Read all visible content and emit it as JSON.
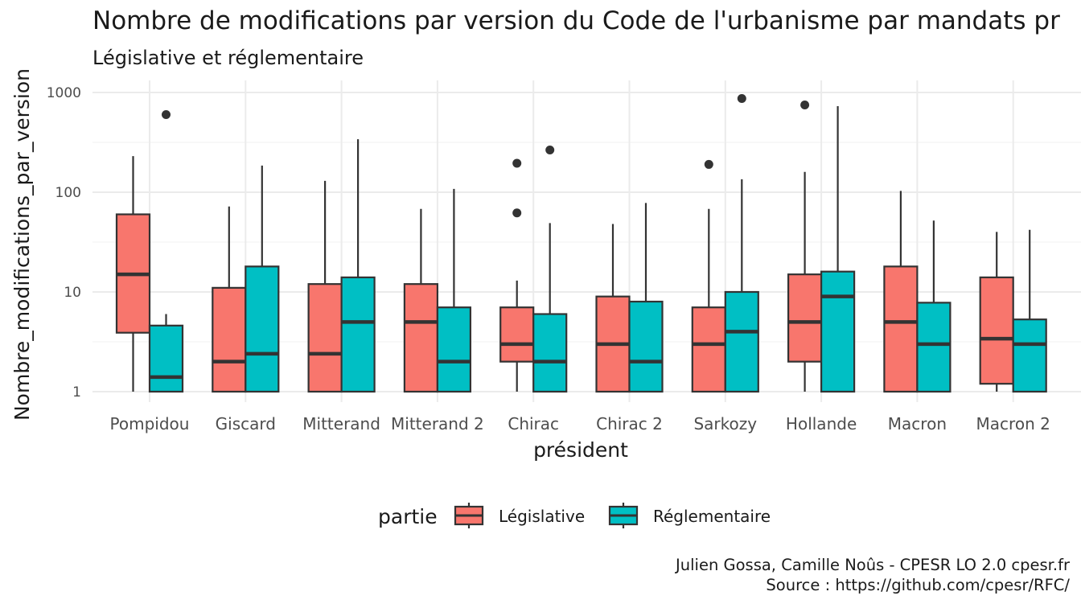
{
  "chart_data": {
    "type": "boxplot",
    "title": "Nombre de modifications par version du Code de l'urbanisme par mandats pr",
    "subtitle": "Législative et réglementaire",
    "xlabel": "président",
    "ylabel": "Nombre_modifications_par_version",
    "y_scale": "log10",
    "ylim": [
      0.9,
      1200
    ],
    "y_ticks": [
      {
        "value": 1,
        "label": "1"
      },
      {
        "value": 10,
        "label": "10"
      },
      {
        "value": 100,
        "label": "100"
      },
      {
        "value": 1000,
        "label": "1000"
      }
    ],
    "categories": [
      "Pompidou",
      "Giscard",
      "Mitterand",
      "Mitterand 2",
      "Chirac",
      "Chirac 2",
      "Sarkozy",
      "Hollande",
      "Macron",
      "Macron 2"
    ],
    "legend": {
      "title": "partie",
      "position": "bottom"
    },
    "grid": true,
    "series": [
      {
        "name": "Législative",
        "color": "#F8766D",
        "boxes": [
          {
            "min": 1,
            "q1": 3.9,
            "median": 15,
            "q3": 60,
            "max": 230,
            "outliers": []
          },
          {
            "min": 1,
            "q1": 1,
            "median": 2,
            "q3": 11,
            "max": 72,
            "outliers": []
          },
          {
            "min": 1,
            "q1": 1,
            "median": 2.4,
            "q3": 12,
            "max": 130,
            "outliers": []
          },
          {
            "min": 1,
            "q1": 1,
            "median": 5,
            "q3": 12,
            "max": 68,
            "outliers": []
          },
          {
            "min": 1,
            "q1": 2,
            "median": 3,
            "q3": 7,
            "max": 13,
            "outliers": [
              62,
              195
            ]
          },
          {
            "min": 1,
            "q1": 1,
            "median": 3,
            "q3": 9,
            "max": 48,
            "outliers": []
          },
          {
            "min": 1,
            "q1": 1,
            "median": 3,
            "q3": 7,
            "max": 68,
            "outliers": [
              190
            ]
          },
          {
            "min": 1,
            "q1": 2,
            "median": 5,
            "q3": 15,
            "max": 160,
            "outliers": [
              750
            ]
          },
          {
            "min": 1,
            "q1": 1,
            "median": 5,
            "q3": 18,
            "max": 103,
            "outliers": []
          },
          {
            "min": 1,
            "q1": 1.2,
            "median": 3.4,
            "q3": 14,
            "max": 40,
            "outliers": []
          }
        ]
      },
      {
        "name": "Réglementaire",
        "color": "#00BFC4",
        "boxes": [
          {
            "min": 1,
            "q1": 1,
            "median": 1.4,
            "q3": 4.6,
            "max": 6,
            "outliers": [
              600
            ]
          },
          {
            "min": 1,
            "q1": 1,
            "median": 2.4,
            "q3": 18,
            "max": 185,
            "outliers": []
          },
          {
            "min": 1,
            "q1": 1,
            "median": 5,
            "q3": 14,
            "max": 340,
            "outliers": []
          },
          {
            "min": 1,
            "q1": 1,
            "median": 2,
            "q3": 7,
            "max": 108,
            "outliers": []
          },
          {
            "min": 1,
            "q1": 1,
            "median": 2,
            "q3": 6,
            "max": 49,
            "outliers": [
              265
            ]
          },
          {
            "min": 1,
            "q1": 1,
            "median": 2,
            "q3": 8,
            "max": 78,
            "outliers": []
          },
          {
            "min": 1,
            "q1": 1,
            "median": 4,
            "q3": 10,
            "max": 135,
            "outliers": [
              870
            ]
          },
          {
            "min": 1,
            "q1": 1,
            "median": 9,
            "q3": 16,
            "max": 730,
            "outliers": []
          },
          {
            "min": 1,
            "q1": 1,
            "median": 3,
            "q3": 7.8,
            "max": 52,
            "outliers": []
          },
          {
            "min": 1,
            "q1": 1,
            "median": 3,
            "q3": 5.3,
            "max": 42,
            "outliers": []
          }
        ]
      }
    ]
  },
  "caption": {
    "line1": "Julien Gossa, Camille Noûs - CPESR LO 2.0 cpesr.fr",
    "line2": "Source : https://github.com/cpesr/RFC/"
  }
}
